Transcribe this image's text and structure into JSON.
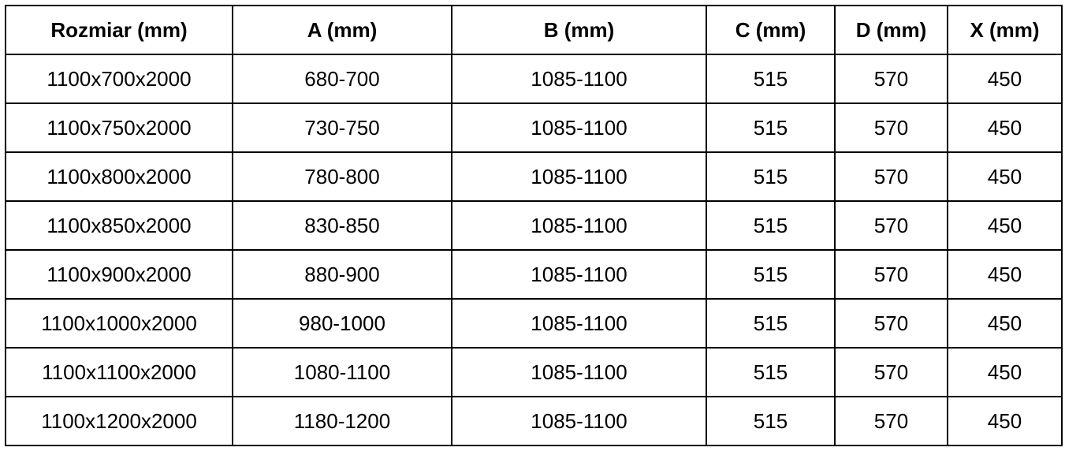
{
  "headers": [
    "Rozmiar (mm)",
    "A (mm)",
    "B (mm)",
    "C (mm)",
    "D (mm)",
    "X (mm)"
  ],
  "rows": [
    [
      "1100x700x2000",
      "680-700",
      "1085-1100",
      "515",
      "570",
      "450"
    ],
    [
      "1100x750x2000",
      "730-750",
      "1085-1100",
      "515",
      "570",
      "450"
    ],
    [
      "1100x800x2000",
      "780-800",
      "1085-1100",
      "515",
      "570",
      "450"
    ],
    [
      "1100x850x2000",
      "830-850",
      "1085-1100",
      "515",
      "570",
      "450"
    ],
    [
      "1100x900x2000",
      "880-900",
      "1085-1100",
      "515",
      "570",
      "450"
    ],
    [
      "1100x1000x2000",
      "980-1000",
      "1085-1100",
      "515",
      "570",
      "450"
    ],
    [
      "1100x1100x2000",
      "1080-1100",
      "1085-1100",
      "515",
      "570",
      "450"
    ],
    [
      "1100x1200x2000",
      "1180-1200",
      "1085-1100",
      "515",
      "570",
      "450"
    ]
  ]
}
